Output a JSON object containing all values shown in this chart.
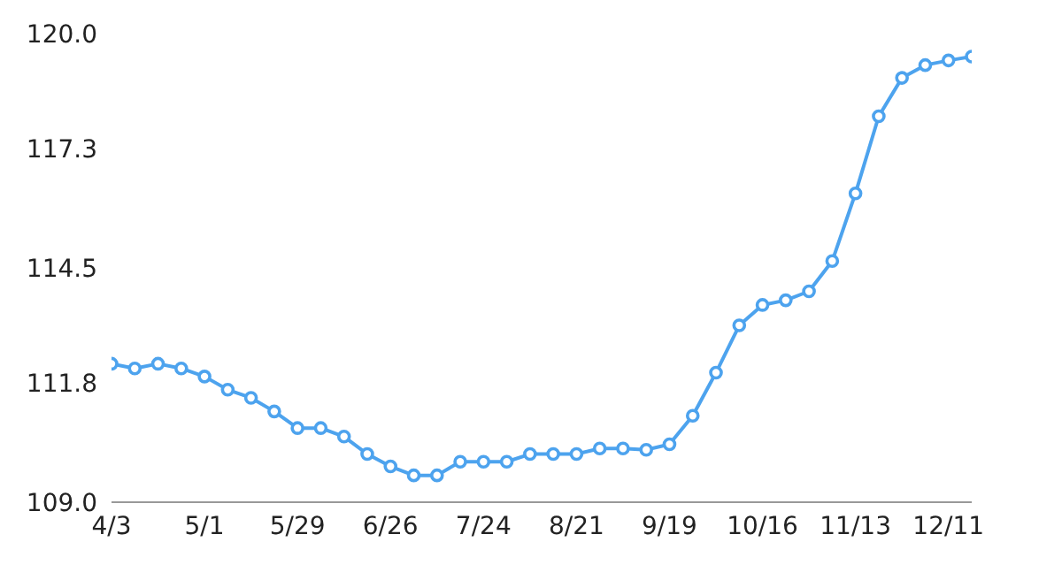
{
  "chart_data": {
    "type": "line",
    "categories": [
      "4/3",
      null,
      null,
      null,
      "5/1",
      null,
      null,
      null,
      "5/29",
      null,
      null,
      null,
      "6/26",
      null,
      null,
      null,
      "7/24",
      null,
      null,
      null,
      "8/21",
      null,
      null,
      null,
      "9/19",
      null,
      null,
      null,
      "10/16",
      null,
      null,
      null,
      "11/13",
      null,
      null,
      null,
      "12/11",
      null
    ],
    "series": [
      {
        "color": "#4da3ee",
        "values": [
          112.25,
          112.14,
          112.25,
          112.14,
          111.95,
          111.64,
          111.45,
          111.13,
          110.74,
          110.74,
          110.54,
          110.13,
          109.84,
          109.63,
          109.63,
          109.95,
          109.95,
          109.95,
          110.13,
          110.13,
          110.13,
          110.26,
          110.26,
          110.23,
          110.36,
          111.03,
          112.04,
          113.15,
          113.63,
          113.74,
          113.95,
          114.66,
          116.25,
          118.06,
          118.96,
          119.26,
          119.37,
          119.46
        ]
      }
    ],
    "ylim": [
      109,
      120
    ],
    "yticks": [
      {
        "value": 109,
        "label": "109.0"
      },
      {
        "value": 111.8,
        "label": "111.8"
      },
      {
        "value": 114.5,
        "label": "114.5"
      },
      {
        "value": 117.3,
        "label": "117.3"
      },
      {
        "value": 120,
        "label": "120.0"
      }
    ],
    "grid": false,
    "marker": "circle",
    "line_style": "solid",
    "legend": false
  }
}
